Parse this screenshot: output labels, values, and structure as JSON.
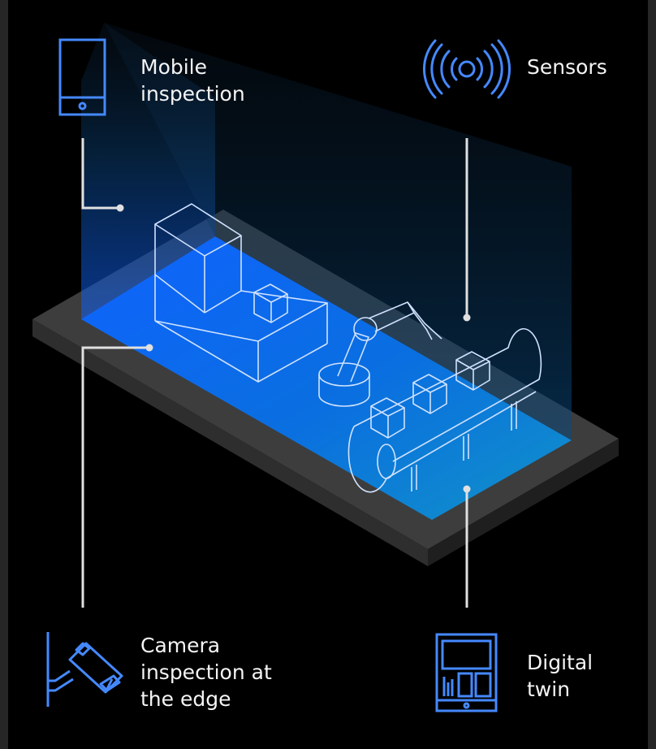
{
  "labels": {
    "mobile_inspection": [
      "Mobile",
      "inspection"
    ],
    "sensors": [
      "Sensors"
    ],
    "camera_inspection": [
      "Camera",
      "inspection at",
      "the edge"
    ],
    "digital_twin": [
      "Digital",
      "twin"
    ]
  },
  "icons": {
    "mobile": "mobile-phone-icon",
    "sensors": "sensor-signal-icon",
    "camera": "security-camera-icon",
    "digital_twin": "dashboard-tablet-icon"
  },
  "colors": {
    "background": "#000000",
    "outer_frame": "#262626",
    "accent_blue": "#4589ff",
    "floor_blue": "#0f62fe",
    "floor_teal": "#1192c8",
    "line_white": "#ffffff",
    "label_text": "#f4f4f4"
  }
}
